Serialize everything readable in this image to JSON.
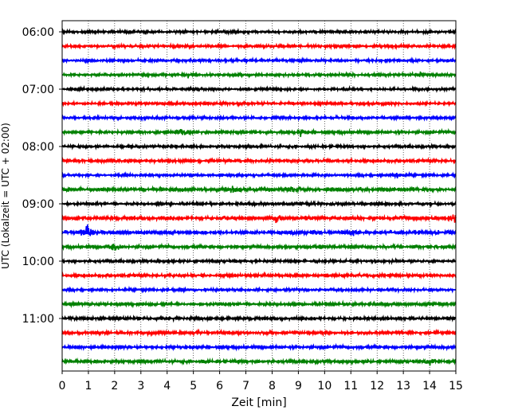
{
  "chart_data": {
    "type": "line",
    "title": "",
    "xlabel": "Zeit  [min]",
    "ylabel": "UTC (Lokalzeit = UTC + 02:00)",
    "xlim": [
      0,
      15
    ],
    "x_ticks": [
      "0",
      "1",
      "2",
      "3",
      "4",
      "5",
      "6",
      "7",
      "8",
      "9",
      "10",
      "11",
      "12",
      "13",
      "14",
      "15"
    ],
    "y_tick_labels": [
      "06:00",
      "07:00",
      "08:00",
      "09:00",
      "10:00",
      "11:00"
    ],
    "grid_x": true,
    "grid_style": "dotted",
    "trace_colors": [
      "#000000",
      "#ff0000",
      "#0000ff",
      "#008000"
    ],
    "traces": [
      {
        "start": "06:00",
        "color": "#000000",
        "amplitude": 0.25,
        "events": []
      },
      {
        "start": "06:15",
        "color": "#ff0000",
        "amplitude": 0.25,
        "events": []
      },
      {
        "start": "06:30",
        "color": "#0000ff",
        "amplitude": 0.25,
        "events": []
      },
      {
        "start": "06:45",
        "color": "#008000",
        "amplitude": 0.25,
        "events": [
          {
            "t": 4.8,
            "amp": 0.5
          },
          {
            "t": 13.6,
            "amp": 0.5
          }
        ]
      },
      {
        "start": "07:00",
        "color": "#000000",
        "amplitude": 0.25,
        "events": []
      },
      {
        "start": "07:15",
        "color": "#ff0000",
        "amplitude": 0.25,
        "events": []
      },
      {
        "start": "07:30",
        "color": "#0000ff",
        "amplitude": 0.25,
        "events": []
      },
      {
        "start": "07:45",
        "color": "#008000",
        "amplitude": 0.3,
        "events": [
          {
            "t": 4.6,
            "amp": 0.6
          },
          {
            "t": 9.1,
            "amp": 0.5
          }
        ]
      },
      {
        "start": "08:00",
        "color": "#000000",
        "amplitude": 0.25,
        "events": []
      },
      {
        "start": "08:15",
        "color": "#ff0000",
        "amplitude": 0.3,
        "events": []
      },
      {
        "start": "08:30",
        "color": "#0000ff",
        "amplitude": 0.25,
        "events": [
          {
            "t": 12.8,
            "amp": 0.6
          }
        ]
      },
      {
        "start": "08:45",
        "color": "#008000",
        "amplitude": 0.35,
        "events": [
          {
            "t": 6.5,
            "amp": 0.7
          },
          {
            "t": 8.8,
            "amp": 0.8
          }
        ]
      },
      {
        "start": "09:00",
        "color": "#000000",
        "amplitude": 0.25,
        "events": []
      },
      {
        "start": "09:15",
        "color": "#ff0000",
        "amplitude": 0.35,
        "events": [
          {
            "t": 8.2,
            "amp": 0.7
          },
          {
            "t": 14.95,
            "amp": 1.0
          }
        ]
      },
      {
        "start": "09:30",
        "color": "#0000ff",
        "amplitude": 0.35,
        "events": [
          {
            "t": 1.0,
            "amp": 1.6
          },
          {
            "t": 11.0,
            "amp": 0.5
          }
        ]
      },
      {
        "start": "09:45",
        "color": "#008000",
        "amplitude": 0.3,
        "events": [
          {
            "t": 2.0,
            "amp": 1.0
          },
          {
            "t": 9.8,
            "amp": 0.6
          }
        ]
      },
      {
        "start": "10:00",
        "color": "#000000",
        "amplitude": 0.25,
        "events": []
      },
      {
        "start": "10:15",
        "color": "#ff0000",
        "amplitude": 0.3,
        "events": []
      },
      {
        "start": "10:30",
        "color": "#0000ff",
        "amplitude": 0.25,
        "events": []
      },
      {
        "start": "10:45",
        "color": "#008000",
        "amplitude": 0.3,
        "events": []
      },
      {
        "start": "11:00",
        "color": "#000000",
        "amplitude": 0.3,
        "events": []
      },
      {
        "start": "11:15",
        "color": "#ff0000",
        "amplitude": 0.3,
        "events": []
      },
      {
        "start": "11:30",
        "color": "#0000ff",
        "amplitude": 0.3,
        "events": []
      },
      {
        "start": "11:45",
        "color": "#008000",
        "amplitude": 0.3,
        "events": [
          {
            "t": 14.0,
            "amp": 0.6
          }
        ]
      }
    ]
  }
}
